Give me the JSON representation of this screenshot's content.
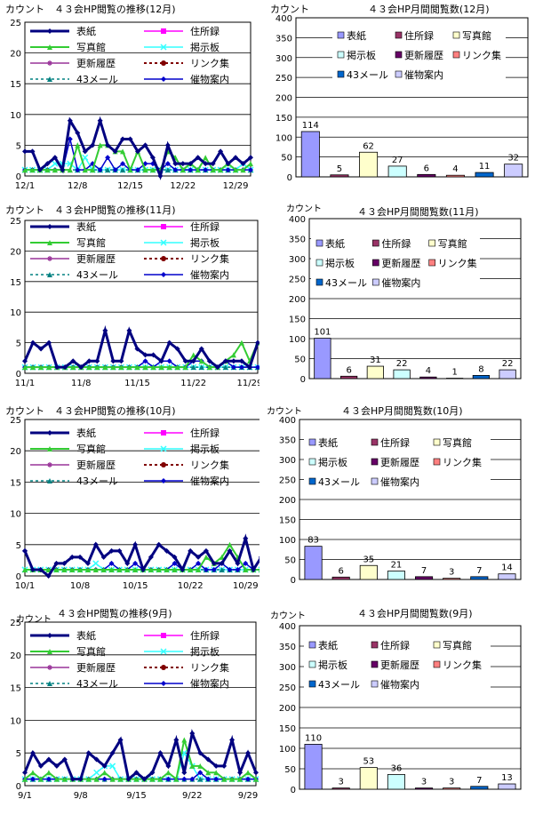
{
  "colors": {
    "cover": "#000080",
    "address": "#ff00ff",
    "photo": "#33cc33",
    "board": "#33ffff",
    "history": "#993399",
    "links": "#800000",
    "mail": "#008080",
    "goods": "#0000cc",
    "bar_cover": "#9999ff",
    "bar_address": "#993366",
    "bar_photo": "#ffffcc",
    "bar_board": "#ccffff",
    "bar_history": "#660066",
    "bar_links": "#ff8080",
    "bar_mail": "#0066cc",
    "bar_goods": "#ccccff"
  },
  "chart_data": [
    {
      "type": "line",
      "title": "カウント　４３会HP閲覧の推移(12月)",
      "ylim": [
        0,
        25
      ],
      "yticks": [
        "0",
        "5",
        "10",
        "15",
        "20",
        "25"
      ],
      "x": [
        "12/1",
        "12/2",
        "12/3",
        "12/4",
        "12/5",
        "12/6",
        "12/7",
        "12/8",
        "12/9",
        "12/10",
        "12/11",
        "12/12",
        "12/13",
        "12/14",
        "12/15",
        "12/16",
        "12/17",
        "12/18",
        "12/19",
        "12/20",
        "12/21",
        "12/22",
        "12/23",
        "12/24",
        "12/25",
        "12/26",
        "12/27",
        "12/28",
        "12/29",
        "12/30",
        "12/31"
      ],
      "xticks": [
        "12/1",
        "12/8",
        "12/15",
        "12/22",
        "12/29"
      ],
      "legend": [
        "表紙",
        "住所録",
        "写真館",
        "掲示板",
        "更新履歴",
        "リンク集",
        "43メール",
        "催物案内"
      ],
      "series": [
        {
          "name": "表紙",
          "values": [
            4,
            4,
            1,
            2,
            3,
            1,
            9,
            7,
            4,
            5,
            9,
            5,
            4,
            6,
            6,
            4,
            5,
            3,
            0,
            5,
            2,
            2,
            2,
            3,
            2,
            2,
            4,
            2,
            3,
            2,
            3
          ]
        },
        {
          "name": "写真館",
          "values": [
            1,
            1,
            1,
            1,
            1,
            1,
            1,
            5,
            1,
            1,
            5,
            5,
            4,
            4,
            1,
            4,
            1,
            1,
            1,
            4,
            3,
            1,
            2,
            1,
            3,
            1,
            1,
            2,
            1,
            1,
            2
          ]
        },
        {
          "name": "掲示板",
          "values": [
            1,
            1,
            1,
            1,
            2,
            2,
            2,
            1,
            3,
            1,
            1,
            1,
            1,
            1,
            1,
            1,
            1,
            1,
            1,
            1,
            1,
            1,
            1,
            1,
            1,
            1,
            1,
            1,
            1,
            2,
            1
          ]
        },
        {
          "name": "43メール",
          "values": [
            1,
            1,
            1,
            1,
            1,
            1,
            1,
            1,
            1,
            1,
            1,
            1,
            1,
            1,
            1,
            1,
            1,
            1,
            1,
            1,
            1,
            1,
            1,
            1,
            1,
            1,
            1,
            1,
            1,
            1,
            1
          ]
        },
        {
          "name": "催物案内",
          "values": [
            1,
            1,
            1,
            1,
            1,
            1,
            6,
            1,
            1,
            2,
            1,
            3,
            1,
            2,
            1,
            1,
            2,
            2,
            1,
            2,
            1,
            1,
            1,
            1,
            1,
            1,
            1,
            1,
            1,
            1,
            1
          ]
        }
      ]
    },
    {
      "type": "bar",
      "title": "カウント　　　　　　４３会HP月間閲覧数(12月)",
      "ylim": [
        0,
        400
      ],
      "yticks": [
        "0",
        "50",
        "100",
        "150",
        "200",
        "250",
        "300",
        "350",
        "400"
      ],
      "categories": [
        "表紙",
        "住所録",
        "写真館",
        "掲示板",
        "更新履歴",
        "リンク集",
        "43メール",
        "催物案内"
      ],
      "values": [
        114,
        5,
        62,
        27,
        6,
        4,
        11,
        32
      ],
      "labels": [
        "114",
        "5",
        "62",
        "27",
        "6",
        "4",
        "11",
        "32"
      ]
    },
    {
      "type": "line",
      "title": "カウント　４３会HP閲覧の推移(11月)",
      "ylim": [
        0,
        25
      ],
      "yticks": [
        "0",
        "5",
        "10",
        "15",
        "20",
        "25"
      ],
      "x": [
        "11/1",
        "11/2",
        "11/3",
        "11/4",
        "11/5",
        "11/6",
        "11/7",
        "11/8",
        "11/9",
        "11/10",
        "11/11",
        "11/12",
        "11/13",
        "11/14",
        "11/15",
        "11/16",
        "11/17",
        "11/18",
        "11/19",
        "11/20",
        "11/21",
        "11/22",
        "11/23",
        "11/24",
        "11/25",
        "11/26",
        "11/27",
        "11/28",
        "11/29",
        "11/30"
      ],
      "xticks": [
        "11/1",
        "11/8",
        "11/15",
        "11/22",
        "11/29"
      ],
      "legend": [
        "表紙",
        "住所録",
        "写真館",
        "掲示板",
        "更新履歴",
        "リンク集",
        "43メール",
        "催物案内"
      ],
      "series": [
        {
          "name": "表紙",
          "values": [
            2,
            5,
            4,
            5,
            1,
            1,
            2,
            1,
            2,
            2,
            7,
            2,
            2,
            7,
            4,
            3,
            3,
            2,
            5,
            4,
            2,
            2,
            4,
            2,
            1,
            2,
            2,
            2,
            1,
            5
          ]
        },
        {
          "name": "写真館",
          "values": [
            1,
            1,
            1,
            1,
            1,
            1,
            1,
            1,
            1,
            1,
            1,
            1,
            1,
            1,
            1,
            1,
            1,
            1,
            1,
            1,
            1,
            3,
            2,
            1,
            1,
            2,
            3,
            5,
            2,
            5
          ]
        },
        {
          "name": "掲示板",
          "values": [
            1,
            1,
            1,
            1,
            1,
            1,
            1,
            1,
            1,
            1,
            1,
            1,
            1,
            1,
            1,
            1,
            1,
            1,
            1,
            1,
            1,
            1,
            1,
            1,
            1,
            1,
            1,
            1,
            1,
            1
          ]
        },
        {
          "name": "43メール",
          "values": [
            1,
            1,
            1,
            1,
            1,
            1,
            1,
            1,
            1,
            1,
            1,
            1,
            1,
            1,
            1,
            1,
            1,
            1,
            1,
            1,
            1,
            1,
            1,
            1,
            1,
            1,
            1,
            1,
            1,
            1
          ]
        },
        {
          "name": "催物案内",
          "values": [
            1,
            1,
            1,
            1,
            1,
            1,
            1,
            1,
            1,
            1,
            1,
            1,
            1,
            1,
            1,
            2,
            1,
            2,
            2,
            1,
            1,
            2,
            2,
            1,
            1,
            2,
            1,
            1,
            1,
            1
          ]
        }
      ]
    },
    {
      "type": "bar",
      "title": "４３会HP月間閲覧数(11月)",
      "ylabel": "カウント",
      "ylim": [
        0,
        400
      ],
      "yticks": [
        "0",
        "50",
        "100",
        "150",
        "200",
        "250",
        "300",
        "350",
        "400"
      ],
      "categories": [
        "表紙",
        "住所録",
        "写真館",
        "掲示板",
        "更新履歴",
        "リンク集",
        "43メール",
        "催物案内"
      ],
      "values": [
        101,
        6,
        31,
        22,
        4,
        1,
        8,
        22
      ],
      "labels": [
        "101",
        "6",
        "31",
        "22",
        "4",
        "1",
        "8",
        "22"
      ]
    },
    {
      "type": "line",
      "title": "カウント　４３会HP閲覧の推移(10月)",
      "ylim": [
        0,
        25
      ],
      "yticks": [
        "0",
        "5",
        "10",
        "15",
        "20",
        "25"
      ],
      "x": [
        "10/1",
        "10/2",
        "10/3",
        "10/4",
        "10/5",
        "10/6",
        "10/7",
        "10/8",
        "10/9",
        "10/10",
        "10/11",
        "10/12",
        "10/13",
        "10/14",
        "10/15",
        "10/16",
        "10/17",
        "10/18",
        "10/19",
        "10/20",
        "10/21",
        "10/22",
        "10/23",
        "10/24",
        "10/25",
        "10/26",
        "10/27",
        "10/28",
        "10/29",
        "10/30",
        "10/31"
      ],
      "xticks": [
        "10/1",
        "10/8",
        "10/15",
        "10/22",
        "10/29"
      ],
      "legend": [
        "表紙",
        "住所録",
        "写真館",
        "掲示板",
        "更新履歴",
        "リンク集",
        "43メール",
        "催物案内"
      ],
      "series": [
        {
          "name": "表紙",
          "values": [
            4,
            1,
            1,
            0,
            2,
            2,
            3,
            3,
            2,
            5,
            3,
            4,
            4,
            2,
            5,
            1,
            3,
            5,
            4,
            3,
            1,
            4,
            3,
            4,
            2,
            2,
            4,
            2,
            6,
            1,
            3
          ]
        },
        {
          "name": "写真館",
          "values": [
            1,
            1,
            1,
            1,
            1,
            1,
            1,
            1,
            1,
            1,
            1,
            1,
            1,
            1,
            1,
            1,
            1,
            1,
            1,
            1,
            1,
            1,
            1,
            3,
            2,
            3,
            5,
            3,
            1,
            1,
            1
          ]
        },
        {
          "name": "掲示板",
          "values": [
            1,
            1,
            1,
            1,
            1,
            1,
            1,
            1,
            1,
            2,
            1,
            1,
            1,
            1,
            1,
            1,
            1,
            1,
            1,
            1,
            1,
            1,
            1,
            1,
            1,
            1,
            1,
            1,
            1,
            1,
            1
          ]
        },
        {
          "name": "43メール",
          "values": [
            1,
            1,
            1,
            1,
            1,
            1,
            1,
            1,
            1,
            1,
            1,
            1,
            1,
            1,
            1,
            1,
            1,
            1,
            1,
            1,
            1,
            1,
            1,
            1,
            1,
            1,
            1,
            1,
            1,
            1,
            1
          ]
        },
        {
          "name": "催物案内",
          "values": [
            4,
            1,
            1,
            1,
            1,
            1,
            1,
            1,
            1,
            1,
            1,
            2,
            1,
            1,
            2,
            1,
            1,
            1,
            1,
            2,
            1,
            1,
            2,
            1,
            1,
            2,
            1,
            1,
            2,
            1,
            3
          ]
        }
      ]
    },
    {
      "type": "bar",
      "title": "４３会HP月間閲覧数(10月)",
      "ylabel": "カウント",
      "ylim": [
        0,
        400
      ],
      "yticks": [
        "0",
        "50",
        "100",
        "150",
        "200",
        "250",
        "300",
        "350",
        "400"
      ],
      "categories": [
        "表紙",
        "住所録",
        "写真館",
        "掲示板",
        "更新履歴",
        "リンク集",
        "43メール",
        "催物案内"
      ],
      "values": [
        83,
        6,
        35,
        21,
        7,
        3,
        7,
        14
      ],
      "labels": [
        "83",
        "6",
        "35",
        "21",
        "7",
        "3",
        "7",
        "14"
      ]
    },
    {
      "type": "line",
      "title": "４３会HP閲覧の推移(9月)",
      "ylabel": "カウント",
      "ylim": [
        0,
        25
      ],
      "yticks": [
        "0",
        "5",
        "10",
        "15",
        "20",
        "25"
      ],
      "x": [
        "9/1",
        "9/2",
        "9/3",
        "9/4",
        "9/5",
        "9/6",
        "9/7",
        "9/8",
        "9/9",
        "9/10",
        "9/11",
        "9/12",
        "9/13",
        "9/14",
        "9/15",
        "9/16",
        "9/17",
        "9/18",
        "9/19",
        "9/20",
        "9/21",
        "9/22",
        "9/23",
        "9/24",
        "9/25",
        "9/26",
        "9/27",
        "9/28",
        "9/29",
        "9/30"
      ],
      "xticks": [
        "9/1",
        "9/8",
        "9/15",
        "9/22",
        "9/29"
      ],
      "legend": [
        "表紙",
        "住所録",
        "写真館",
        "掲示板",
        "更新履歴",
        "リンク集",
        "43メール",
        "催物案内"
      ],
      "series": [
        {
          "name": "表紙",
          "values": [
            2,
            5,
            3,
            4,
            3,
            4,
            1,
            1,
            5,
            4,
            3,
            5,
            7,
            1,
            2,
            1,
            2,
            5,
            3,
            7,
            2,
            8,
            5,
            4,
            3,
            3,
            7,
            2,
            5,
            2
          ]
        },
        {
          "name": "写真館",
          "values": [
            1,
            2,
            1,
            2,
            1,
            1,
            1,
            1,
            1,
            1,
            2,
            1,
            1,
            1,
            1,
            1,
            1,
            1,
            2,
            1,
            7,
            3,
            3,
            2,
            2,
            1,
            1,
            1,
            2,
            1
          ]
        },
        {
          "name": "掲示板",
          "values": [
            1,
            1,
            1,
            1,
            1,
            1,
            1,
            1,
            1,
            2,
            3,
            3,
            1,
            1,
            1,
            1,
            1,
            1,
            1,
            1,
            5,
            3,
            1,
            1,
            1,
            1,
            1,
            1,
            1,
            1
          ]
        },
        {
          "name": "43メール",
          "values": [
            1,
            1,
            1,
            1,
            1,
            1,
            1,
            1,
            1,
            1,
            1,
            1,
            1,
            1,
            1,
            1,
            1,
            1,
            1,
            1,
            1,
            1,
            1,
            1,
            1,
            1,
            1,
            1,
            1,
            1
          ]
        },
        {
          "name": "催物案内",
          "values": [
            1,
            1,
            1,
            1,
            1,
            1,
            1,
            1,
            1,
            1,
            1,
            1,
            1,
            1,
            1,
            1,
            1,
            1,
            1,
            1,
            1,
            1,
            2,
            1,
            1,
            1,
            1,
            1,
            1,
            1
          ]
        }
      ]
    },
    {
      "type": "bar",
      "title": "４３会HP月間閲覧数(9月)",
      "ylabel": "カウント",
      "ylim": [
        0,
        400
      ],
      "yticks": [
        "0",
        "50",
        "100",
        "150",
        "200",
        "250",
        "300",
        "350",
        "400"
      ],
      "categories": [
        "表紙",
        "住所録",
        "写真館",
        "掲示板",
        "更新履歴",
        "リンク集",
        "43メール",
        "催物案内"
      ],
      "values": [
        110,
        3,
        53,
        36,
        3,
        3,
        7,
        13
      ],
      "labels": [
        "110",
        "3",
        "53",
        "36",
        "3",
        "3",
        "7",
        "13"
      ]
    }
  ]
}
